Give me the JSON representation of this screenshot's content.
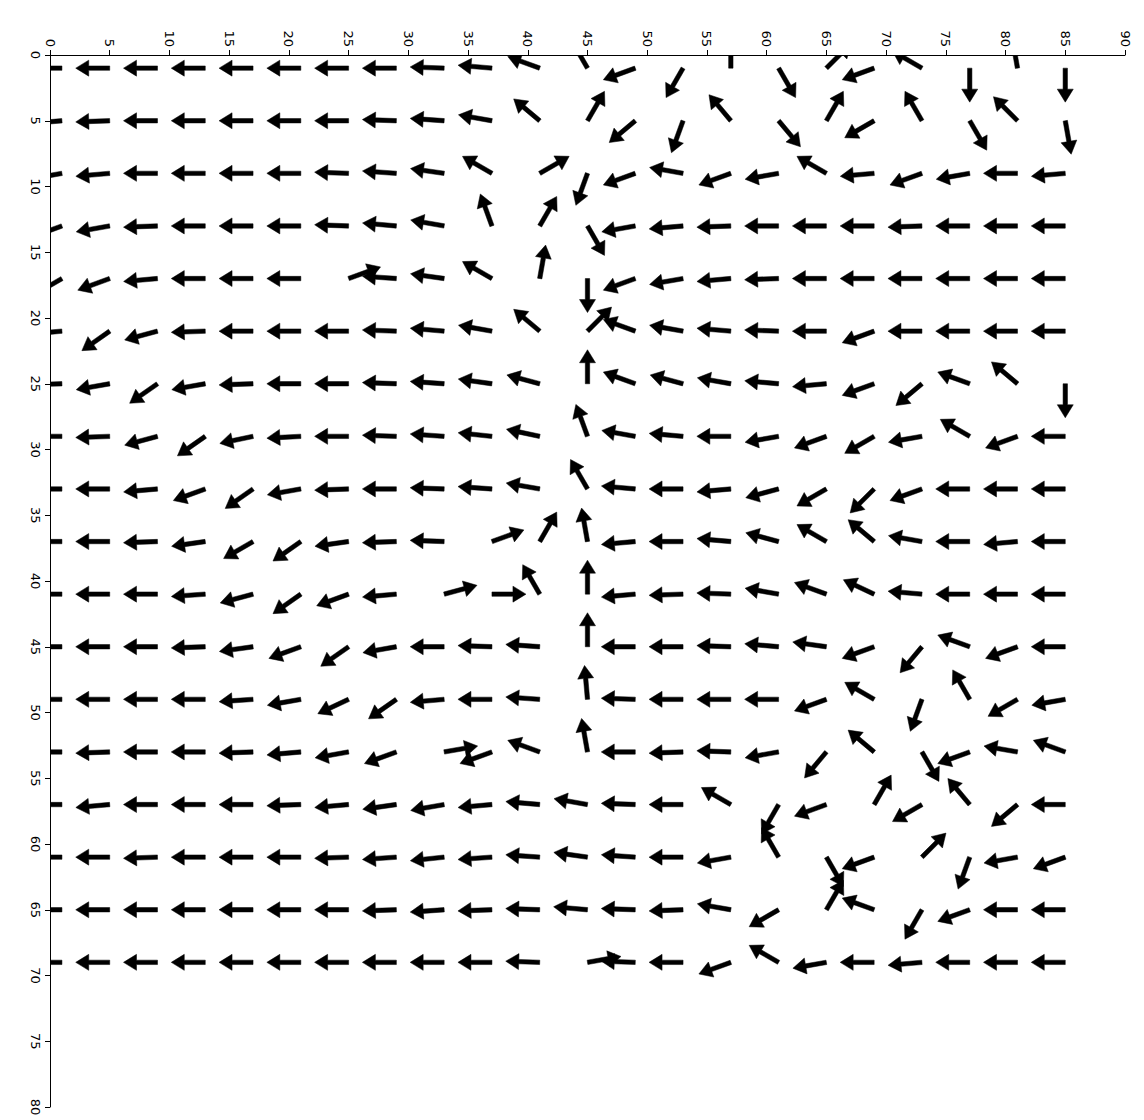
{
  "chart_data": {
    "type": "quiver",
    "x": [
      1,
      5,
      9,
      13,
      17,
      21,
      25,
      29,
      33,
      37,
      41,
      45,
      49,
      53,
      57,
      61,
      65,
      69,
      73,
      77,
      81,
      85
    ],
    "y": [
      1,
      5,
      9,
      13,
      17,
      21,
      25,
      29,
      33,
      37,
      41,
      45,
      49,
      53,
      57,
      61,
      65,
      69
    ],
    "angles": [
      [
        180,
        180,
        180,
        180,
        180,
        180,
        180,
        180,
        178,
        175,
        160,
        120,
        200,
        240,
        90,
        300,
        45,
        200,
        150,
        270,
        100,
        270
      ],
      [
        185,
        182,
        180,
        180,
        180,
        180,
        180,
        178,
        176,
        170,
        140,
        60,
        220,
        250,
        130,
        310,
        60,
        210,
        120,
        300,
        135,
        280
      ],
      [
        190,
        185,
        180,
        180,
        180,
        180,
        178,
        176,
        172,
        150,
        30,
        250,
        200,
        170,
        200,
        190,
        150,
        185,
        200,
        190,
        180,
        185
      ],
      [
        200,
        190,
        182,
        180,
        180,
        180,
        178,
        175,
        170,
        110,
        60,
        300,
        190,
        185,
        182,
        180,
        180,
        180,
        182,
        180,
        180,
        180
      ],
      [
        210,
        200,
        185,
        180,
        180,
        180,
        20,
        176,
        172,
        150,
        80,
        270,
        200,
        190,
        185,
        182,
        180,
        180,
        180,
        180,
        180,
        180
      ],
      [
        185,
        215,
        195,
        182,
        180,
        180,
        180,
        178,
        175,
        170,
        140,
        45,
        160,
        170,
        175,
        178,
        180,
        200,
        180,
        180,
        180,
        180
      ],
      [
        182,
        190,
        215,
        190,
        182,
        180,
        180,
        178,
        176,
        172,
        165,
        90,
        160,
        165,
        170,
        175,
        185,
        200,
        220,
        160,
        140,
        270
      ],
      [
        180,
        182,
        195,
        215,
        192,
        183,
        180,
        178,
        176,
        174,
        168,
        110,
        170,
        175,
        180,
        190,
        200,
        210,
        190,
        150,
        200,
        180
      ],
      [
        180,
        180,
        185,
        200,
        215,
        190,
        182,
        180,
        178,
        176,
        170,
        120,
        175,
        180,
        185,
        195,
        210,
        225,
        200,
        180,
        180,
        180
      ],
      [
        180,
        180,
        182,
        188,
        210,
        215,
        188,
        182,
        178,
        20,
        60,
        100,
        185,
        180,
        175,
        165,
        150,
        140,
        170,
        180,
        185,
        180
      ],
      [
        180,
        180,
        180,
        184,
        195,
        215,
        200,
        185,
        15,
        0,
        120,
        90,
        185,
        182,
        178,
        170,
        160,
        155,
        175,
        180,
        180,
        180
      ],
      [
        180,
        180,
        180,
        182,
        188,
        200,
        215,
        190,
        180,
        178,
        176,
        90,
        180,
        180,
        178,
        175,
        172,
        200,
        230,
        160,
        200,
        180
      ],
      [
        180,
        180,
        180,
        180,
        184,
        190,
        205,
        215,
        185,
        180,
        176,
        95,
        178,
        180,
        180,
        180,
        200,
        150,
        250,
        120,
        210,
        190
      ],
      [
        180,
        182,
        180,
        180,
        182,
        185,
        190,
        200,
        10,
        200,
        160,
        100,
        180,
        182,
        178,
        190,
        230,
        140,
        300,
        200,
        170,
        160
      ],
      [
        180,
        185,
        180,
        180,
        180,
        182,
        185,
        188,
        190,
        185,
        175,
        170,
        178,
        180,
        150,
        240,
        200,
        60,
        210,
        130,
        220,
        180
      ],
      [
        180,
        180,
        182,
        180,
        180,
        180,
        182,
        184,
        186,
        184,
        176,
        172,
        176,
        180,
        190,
        120,
        300,
        200,
        45,
        250,
        190,
        200
      ],
      [
        180,
        180,
        180,
        180,
        180,
        180,
        180,
        182,
        184,
        182,
        178,
        175,
        178,
        182,
        170,
        210,
        60,
        160,
        240,
        200,
        180,
        180
      ],
      [
        180,
        180,
        180,
        180,
        180,
        180,
        180,
        180,
        180,
        180,
        178,
        10,
        178,
        180,
        200,
        150,
        190,
        180,
        185,
        180,
        180,
        180
      ]
    ],
    "color": "#000000",
    "xlim": [
      0,
      90
    ],
    "xticks": [
      0,
      5,
      10,
      15,
      20,
      25,
      30,
      35,
      40,
      45,
      50,
      55,
      60,
      65,
      70,
      75,
      80,
      85,
      90
    ],
    "ylim": [
      80,
      0
    ],
    "yticks": [
      0,
      5,
      10,
      15,
      20,
      25,
      30,
      35,
      40,
      45,
      50,
      55,
      60,
      65,
      70,
      75,
      80
    ]
  }
}
